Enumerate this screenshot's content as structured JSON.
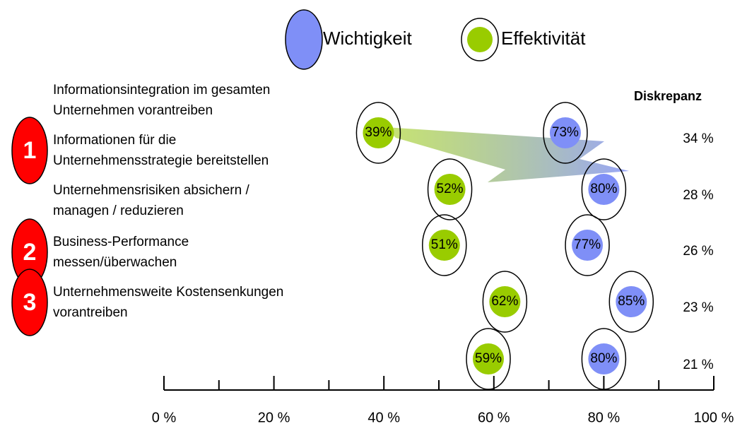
{
  "chart_data": {
    "type": "dot",
    "legend": [
      "Wichtigkeit",
      "Effektivität"
    ],
    "diff_header": "Diskrepanz",
    "categories": [
      [
        "Informationsintegration im gesamten",
        "Unternehmen vorantreiben"
      ],
      [
        "Informationen für die",
        "Unternehmensstrategie bereitstellen"
      ],
      [
        "Unternehmensrisiken absichern /",
        "managen / reduzieren"
      ],
      [
        "Business-Performance",
        "messen/überwachen"
      ],
      [
        "Unternehmensweite Kostensenkungen",
        "vorantreiben"
      ]
    ],
    "ranks": [
      null,
      "1",
      null,
      "2",
      "3"
    ],
    "series": [
      {
        "name": "Effektivität",
        "color": "#99cc00",
        "values": [
          39,
          52,
          51,
          62,
          59
        ],
        "value_labels": [
          "39%",
          "52%",
          "51%",
          "62%",
          "59%"
        ]
      },
      {
        "name": "Wichtigkeit",
        "color": "#7f8ff7",
        "values": [
          73,
          80,
          77,
          85,
          80
        ],
        "value_labels": [
          "73%",
          "80%",
          "77%",
          "85%",
          "80%"
        ]
      }
    ],
    "diffs": {
      "values": [
        34,
        28,
        26,
        23,
        21
      ],
      "value_labels": [
        "34 %",
        "28 %",
        "26 %",
        "23 %",
        "21 %"
      ]
    },
    "xlim": [
      0,
      100
    ],
    "xticks": [
      {
        "value": 0,
        "label": "0 %"
      },
      {
        "value": 20,
        "label": "20 %"
      },
      {
        "value": 40,
        "label": "40 %"
      },
      {
        "value": 60,
        "label": "60 %"
      },
      {
        "value": 80,
        "label": "80 %"
      },
      {
        "value": 100,
        "label": "100 %"
      }
    ],
    "xminor_ticks": [
      10,
      30,
      50,
      70,
      90
    ]
  }
}
